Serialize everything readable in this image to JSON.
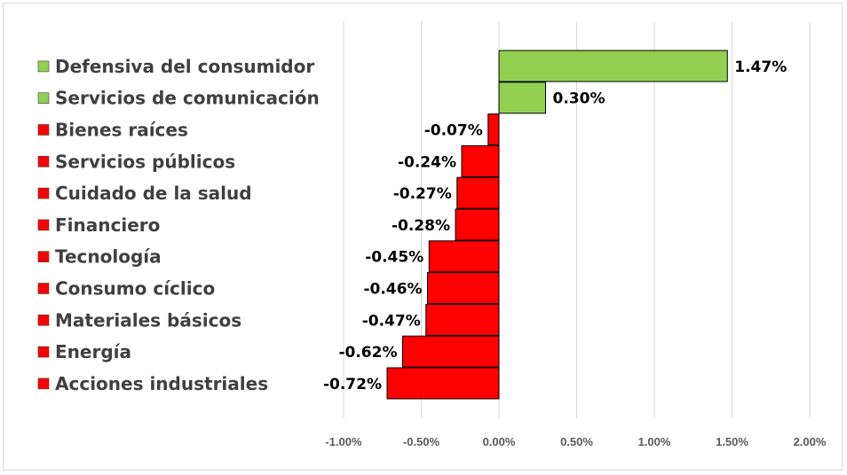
{
  "chart_data": {
    "type": "bar",
    "orientation": "horizontal",
    "title": "",
    "xlabel": "",
    "ylabel": "",
    "xlim": [
      -1.0,
      2.0
    ],
    "grid": true,
    "legend_position": "left",
    "categories": [
      "Defensiva del consumidor",
      "Servicios de comunicación",
      "Bienes raíces",
      "Servicios públicos",
      "Cuidado de la salud",
      "Financiero",
      "Tecnología",
      "Consumo cíclico",
      "Materiales básicos",
      "Energía",
      "Acciones industriales"
    ],
    "values": [
      1.47,
      0.3,
      -0.07,
      -0.24,
      -0.27,
      -0.28,
      -0.45,
      -0.46,
      -0.47,
      -0.62,
      -0.72
    ],
    "value_labels": [
      "1.47%",
      "0.30%",
      "-0.07%",
      "-0.24%",
      "-0.27%",
      "-0.28%",
      "-0.45%",
      "-0.46%",
      "-0.47%",
      "-0.62%",
      "-0.72%"
    ],
    "x_ticks": [
      -1.0,
      -0.5,
      0.0,
      0.5,
      1.0,
      1.5,
      2.0
    ],
    "x_tick_labels": [
      "-1.00%",
      "-0.50%",
      "0.00%",
      "0.50%",
      "1.00%",
      "1.50%",
      "2.00%"
    ],
    "colors": {
      "positive": "#92d050",
      "negative": "#ff0000"
    }
  }
}
